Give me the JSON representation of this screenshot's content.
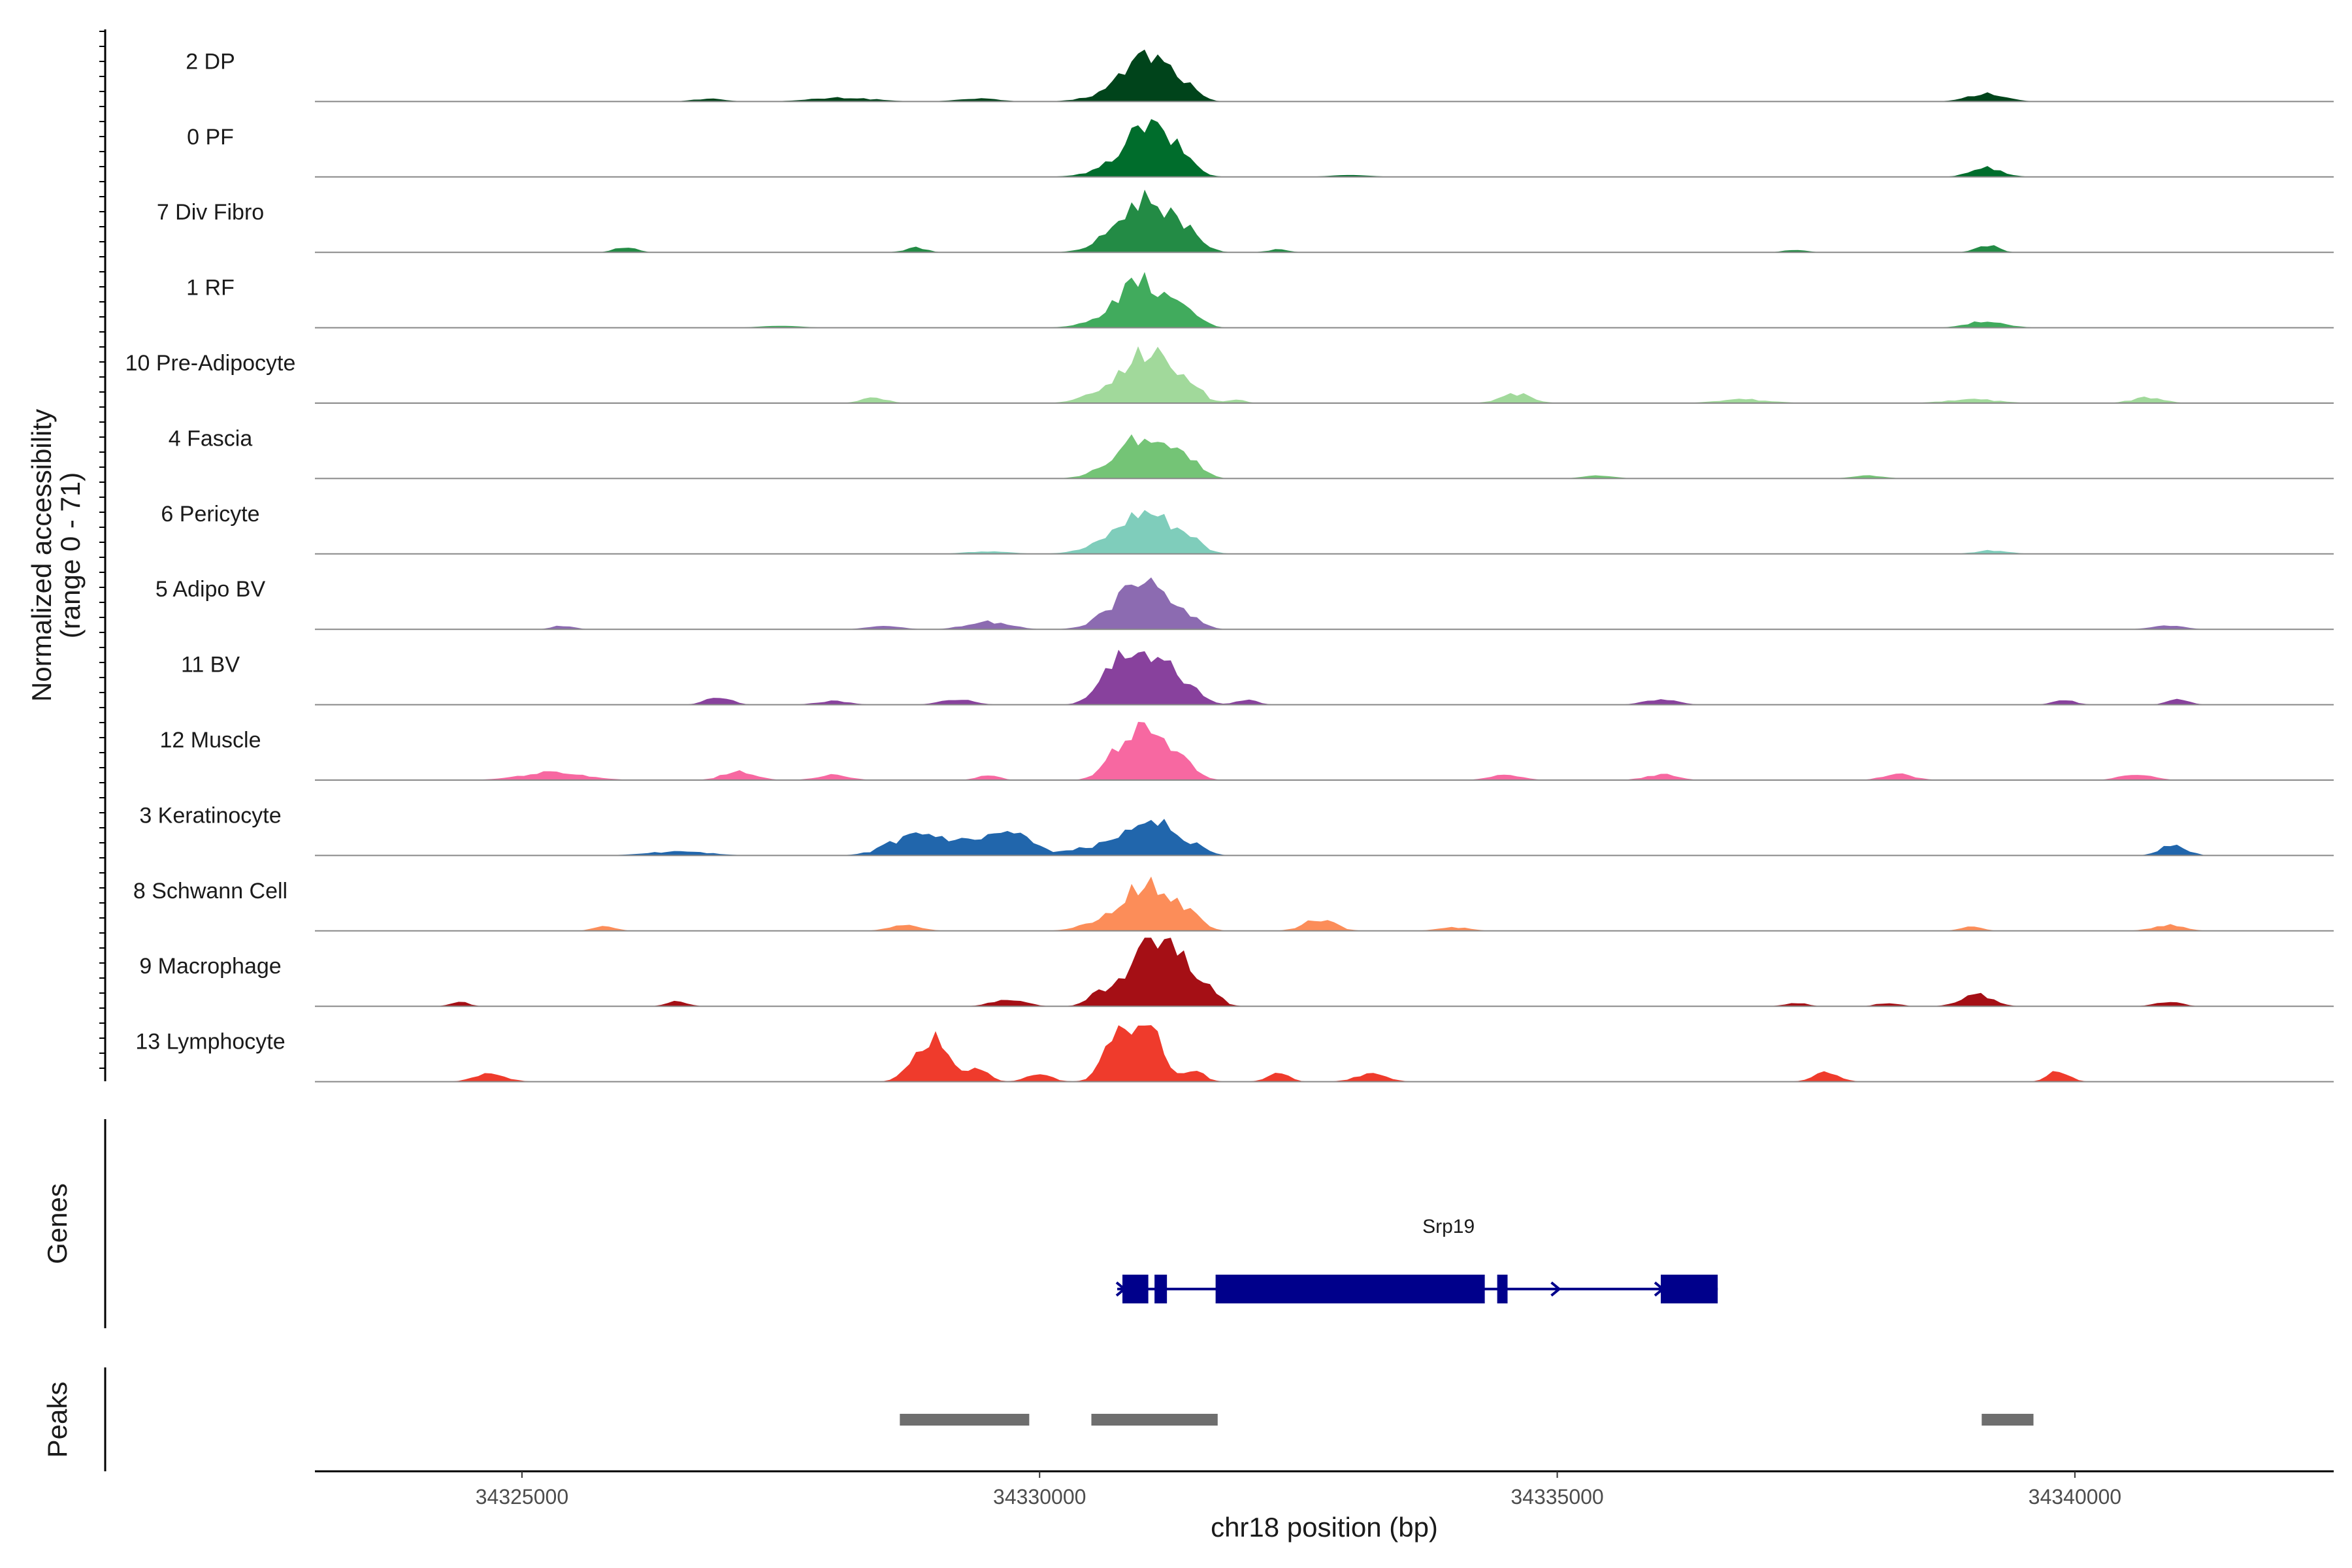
{
  "chart_data": {
    "type": "area",
    "title": "",
    "ylabel_line1": "Normalized accessibility",
    "ylabel_line2": "(range 0 - 71)",
    "ylim": [
      0,
      71
    ],
    "xlabel": "chr18 position (bp)",
    "xlim": [
      34323000,
      34342500
    ],
    "xticks": [
      {
        "value": 34325000,
        "label": "34325000"
      },
      {
        "value": 34330000,
        "label": "34330000"
      },
      {
        "value": 34335000,
        "label": "34335000"
      },
      {
        "value": 34340000,
        "label": "34340000"
      }
    ],
    "tracks": [
      {
        "name": "2 DP",
        "color": "#00441b",
        "peaks": [
          [
            34331050,
            48,
            220
          ],
          [
            34331400,
            10,
            120
          ],
          [
            34339150,
            8,
            180
          ],
          [
            34326800,
            3,
            150
          ],
          [
            34328100,
            4,
            300
          ],
          [
            34329400,
            3,
            200
          ],
          [
            34330700,
            6,
            250
          ]
        ]
      },
      {
        "name": "0 PF",
        "color": "#006d2c",
        "peaks": [
          [
            34331050,
            52,
            220
          ],
          [
            34331400,
            12,
            120
          ],
          [
            34339150,
            10,
            150
          ],
          [
            34330700,
            5,
            250
          ],
          [
            34333000,
            2,
            200
          ]
        ]
      },
      {
        "name": "7 Div Fibro",
        "color": "#238b45",
        "peaks": [
          [
            34331050,
            55,
            240
          ],
          [
            34331450,
            14,
            120
          ],
          [
            34339150,
            8,
            100
          ],
          [
            34326000,
            6,
            100
          ],
          [
            34328800,
            5,
            100
          ],
          [
            34330700,
            8,
            200
          ],
          [
            34332300,
            3,
            100
          ],
          [
            34337300,
            3,
            100
          ]
        ]
      },
      {
        "name": "1 RF",
        "color": "#41ab5d",
        "peaks": [
          [
            34331000,
            46,
            230
          ],
          [
            34331450,
            12,
            120
          ],
          [
            34339150,
            7,
            180
          ],
          [
            34330700,
            6,
            250
          ],
          [
            34327500,
            2,
            200
          ]
        ]
      },
      {
        "name": "10 Pre-Adipocyte",
        "color": "#a1d99b",
        "peaks": [
          [
            34331050,
            55,
            230
          ],
          [
            34331450,
            14,
            120
          ],
          [
            34334600,
            10,
            150
          ],
          [
            34328400,
            6,
            120
          ],
          [
            34330600,
            8,
            200
          ],
          [
            34336800,
            4,
            250
          ],
          [
            34339000,
            4,
            250
          ],
          [
            34340700,
            6,
            150
          ],
          [
            34331900,
            4,
            80
          ]
        ]
      },
      {
        "name": "4 Fascia",
        "color": "#74c476",
        "peaks": [
          [
            34331050,
            45,
            230
          ],
          [
            34331450,
            13,
            120
          ],
          [
            34330700,
            8,
            200
          ],
          [
            34338000,
            3,
            150
          ],
          [
            34335400,
            3,
            150
          ]
        ]
      },
      {
        "name": "6 Pericyte",
        "color": "#7fcdbb",
        "peaks": [
          [
            34331050,
            42,
            250
          ],
          [
            34331450,
            10,
            120
          ],
          [
            34330700,
            8,
            250
          ],
          [
            34329500,
            3,
            200
          ],
          [
            34339200,
            4,
            150
          ]
        ]
      },
      {
        "name": "5 Adipo BV",
        "color": "#8c6bb1",
        "peaks": [
          [
            34331000,
            48,
            220
          ],
          [
            34331450,
            12,
            120
          ],
          [
            34329500,
            8,
            200
          ],
          [
            34330700,
            8,
            200
          ],
          [
            34328500,
            4,
            150
          ],
          [
            34325400,
            4,
            100
          ],
          [
            34340900,
            4,
            150
          ]
        ]
      },
      {
        "name": "11 BV",
        "color": "#88419d",
        "peaks": [
          [
            34331050,
            55,
            230
          ],
          [
            34330700,
            25,
            150
          ],
          [
            34331450,
            12,
            120
          ],
          [
            34326900,
            8,
            120
          ],
          [
            34329200,
            6,
            150
          ],
          [
            34339900,
            6,
            100
          ],
          [
            34341000,
            6,
            100
          ],
          [
            34336000,
            6,
            150
          ],
          [
            34328000,
            4,
            150
          ],
          [
            34332000,
            5,
            100
          ]
        ]
      },
      {
        "name": "12 Muscle",
        "color": "#f768a1",
        "peaks": [
          [
            34331050,
            45,
            220
          ],
          [
            34330800,
            20,
            150
          ],
          [
            34331450,
            10,
            100
          ],
          [
            34327100,
            10,
            150
          ],
          [
            34325300,
            8,
            300
          ],
          [
            34328000,
            6,
            150
          ],
          [
            34329500,
            6,
            100
          ],
          [
            34334500,
            6,
            150
          ],
          [
            34336000,
            6,
            150
          ],
          [
            34338300,
            6,
            150
          ],
          [
            34340600,
            7,
            150
          ]
        ]
      },
      {
        "name": "3 Keratinocyte",
        "color": "#2166ac",
        "peaks": [
          [
            34331050,
            42,
            220
          ],
          [
            34328800,
            20,
            250
          ],
          [
            34329400,
            12,
            300
          ],
          [
            34329750,
            16,
            200
          ],
          [
            34330500,
            8,
            200
          ],
          [
            34331500,
            8,
            120
          ],
          [
            34340950,
            12,
            120
          ],
          [
            34326500,
            4,
            300
          ]
        ]
      },
      {
        "name": "8 Schwann Cell",
        "color": "#fc8d59",
        "peaks": [
          [
            34331050,
            50,
            220
          ],
          [
            34331450,
            14,
            120
          ],
          [
            34332700,
            12,
            150
          ],
          [
            34330600,
            8,
            200
          ],
          [
            34328700,
            6,
            150
          ],
          [
            34325800,
            6,
            100
          ],
          [
            34334000,
            4,
            150
          ],
          [
            34340900,
            6,
            150
          ],
          [
            34339000,
            5,
            100
          ]
        ]
      },
      {
        "name": "9 Macrophage",
        "color": "#a50f15",
        "peaks": [
          [
            34331000,
            58,
            160
          ],
          [
            34331300,
            50,
            150
          ],
          [
            34330600,
            15,
            120
          ],
          [
            34331600,
            20,
            120
          ],
          [
            34339050,
            12,
            150
          ],
          [
            34329700,
            8,
            150
          ],
          [
            34324400,
            6,
            80
          ],
          [
            34326500,
            5,
            100
          ],
          [
            34337300,
            4,
            100
          ],
          [
            34338200,
            4,
            100
          ],
          [
            34340900,
            5,
            120
          ]
        ]
      },
      {
        "name": "13 Lymphocyte",
        "color": "#ef3b2c",
        "peaks": [
          [
            34331000,
            70,
            160
          ],
          [
            34330700,
            30,
            120
          ],
          [
            34329000,
            42,
            130
          ],
          [
            34328800,
            15,
            120
          ],
          [
            34329400,
            16,
            100
          ],
          [
            34331500,
            10,
            100
          ],
          [
            34324700,
            8,
            150
          ],
          [
            34337600,
            10,
            120
          ],
          [
            34339850,
            12,
            100
          ],
          [
            34332300,
            10,
            100
          ],
          [
            34333200,
            8,
            150
          ],
          [
            34330000,
            8,
            120
          ]
        ]
      }
    ],
    "genes_label": "Genes",
    "gene": {
      "name": "Srp19",
      "start": 34330750,
      "end": 34336550,
      "exons": [
        [
          34330800,
          34331050
        ],
        [
          34331110,
          34331230
        ],
        [
          34331700,
          34334300
        ],
        [
          34334420,
          34334520
        ],
        [
          34336000,
          34336550
        ]
      ],
      "color": "#00008b"
    },
    "peaks_label": "Peaks",
    "peak_regions": [
      [
        34328650,
        34329900
      ],
      [
        34330500,
        34331720
      ],
      [
        34339100,
        34339600
      ]
    ],
    "peak_color": "#6e6e6e"
  }
}
